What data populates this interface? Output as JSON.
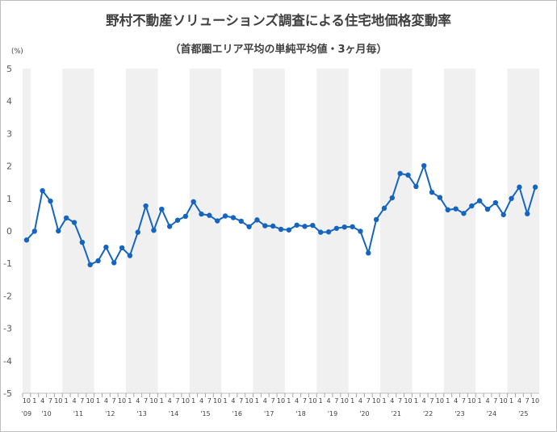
{
  "chart_data": {
    "type": "line",
    "title": "野村不動産ソリューションズ調査による住宅地価格変動率",
    "subtitle": "（首都圏エリア平均の単純平均値・3ヶ月毎）",
    "ylabel": "(%)",
    "ylim": [
      -5,
      5
    ],
    "yticks": [
      "5",
      "4",
      "3",
      "2",
      "1",
      "0",
      "-1",
      "-2",
      "-3",
      "-4",
      "-5"
    ],
    "grid": false,
    "year_labels": [
      "'09",
      "'10",
      "'11",
      "'12",
      "'13",
      "'14",
      "'15",
      "'16",
      "'17",
      "'18",
      "'19",
      "'20",
      "'21",
      "'22",
      "'23",
      "'24",
      "'25"
    ],
    "month_tick_labels": [
      "10",
      "1",
      "4",
      "7",
      "10"
    ],
    "series_color": "#1565c0",
    "band_color": "#f0f0f0",
    "x": [
      "'09-10",
      "'10-1",
      "'10-4",
      "'10-7",
      "'10-10",
      "'11-1",
      "'11-4",
      "'11-7",
      "'11-10",
      "'12-1",
      "'12-4",
      "'12-7",
      "'12-10",
      "'13-1",
      "'13-4",
      "'13-7",
      "'13-10",
      "'14-1",
      "'14-4",
      "'14-7",
      "'14-10",
      "'15-1",
      "'15-4",
      "'15-7",
      "'15-10",
      "'16-1",
      "'16-4",
      "'16-7",
      "'16-10",
      "'17-1",
      "'17-4",
      "'17-7",
      "'17-10",
      "'18-1",
      "'18-4",
      "'18-7",
      "'18-10",
      "'19-1",
      "'19-4",
      "'19-7",
      "'19-10",
      "'20-1",
      "'20-4",
      "'20-7",
      "'20-10",
      "'21-1",
      "'21-4",
      "'21-7",
      "'21-10",
      "'22-1",
      "'22-4",
      "'22-7",
      "'22-10",
      "'23-1",
      "'23-4",
      "'23-7",
      "'23-10",
      "'24-1",
      "'24-4",
      "'24-7",
      "'24-10",
      "'25-1",
      "'25-4",
      "'25-7",
      "'25-10"
    ],
    "values": [
      -0.28,
      -0.01,
      1.24,
      0.92,
      0.0,
      0.4,
      0.26,
      -0.35,
      -1.04,
      -0.92,
      -0.5,
      -0.98,
      -0.52,
      -0.76,
      -0.04,
      0.77,
      0.02,
      0.67,
      0.14,
      0.33,
      0.45,
      0.9,
      0.52,
      0.48,
      0.31,
      0.46,
      0.41,
      0.3,
      0.13,
      0.34,
      0.16,
      0.15,
      0.05,
      0.03,
      0.18,
      0.14,
      0.17,
      -0.04,
      -0.03,
      0.08,
      0.12,
      0.13,
      -0.01,
      -0.68,
      0.35,
      0.7,
      1.02,
      1.77,
      1.72,
      1.37,
      2.01,
      1.19,
      1.03,
      0.65,
      0.68,
      0.54,
      0.77,
      0.93,
      0.67,
      0.87,
      0.5,
      1.0,
      1.35,
      0.53,
      1.35
    ]
  }
}
